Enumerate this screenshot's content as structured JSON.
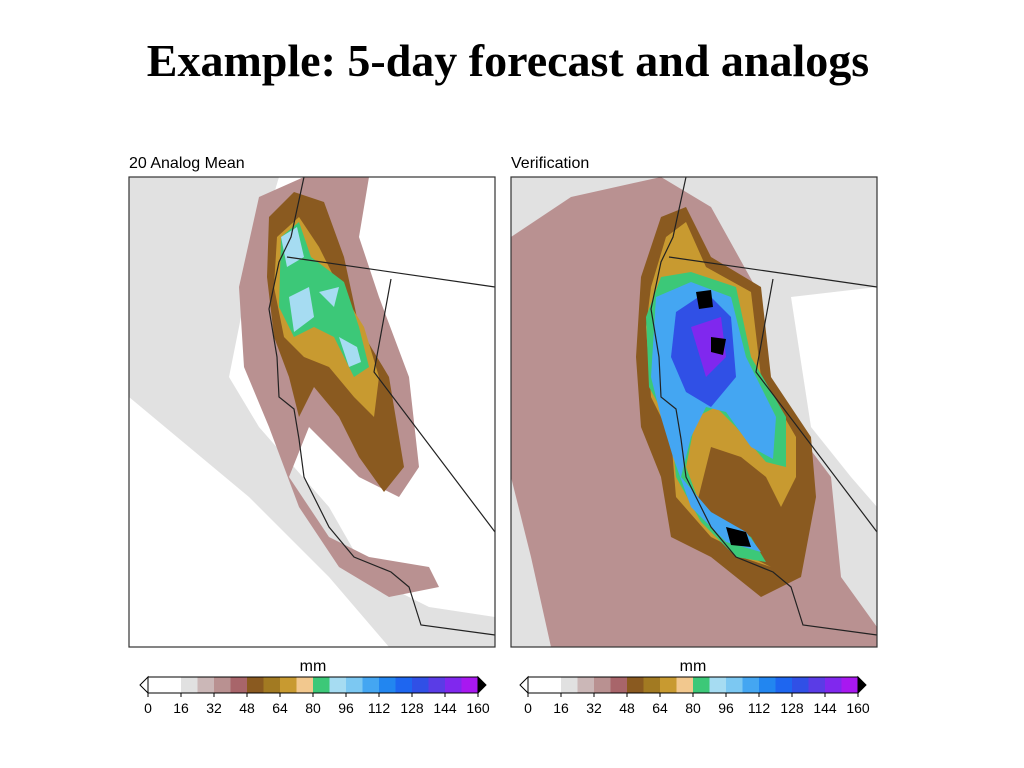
{
  "title": "Example: 5-day forecast and analogs",
  "panels": [
    {
      "title": "20 Analog Mean",
      "colorbar": {
        "unit": "mm",
        "ticks": [
          0,
          16,
          32,
          48,
          64,
          80,
          96,
          112,
          128,
          144,
          160
        ],
        "colors": [
          "#ffffff",
          "#ffffff",
          "#e1e1e1",
          "#cbb7b7",
          "#b99191",
          "#a8656a",
          "#8a5a20",
          "#a27a22",
          "#c89a30",
          "#f2c88e",
          "#3cc878",
          "#a6dcf2",
          "#7cc8f2",
          "#44a6f2",
          "#2286f0",
          "#1e66f0",
          "#3050e6",
          "#5a3ce6",
          "#8028ee",
          "#a818f0"
        ]
      }
    },
    {
      "title": "Verification",
      "colorbar": {
        "unit": "mm",
        "ticks": [
          0,
          16,
          32,
          48,
          64,
          80,
          96,
          112,
          128,
          144,
          160
        ],
        "colors": [
          "#ffffff",
          "#ffffff",
          "#e1e1e1",
          "#cbb7b7",
          "#b99191",
          "#a8656a",
          "#8a5a20",
          "#a27a22",
          "#c89a30",
          "#f2c88e",
          "#3cc878",
          "#a6dcf2",
          "#7cc8f2",
          "#44a6f2",
          "#2286f0",
          "#1e66f0",
          "#3050e6",
          "#5a3ce6",
          "#8028ee",
          "#a818f0"
        ]
      }
    }
  ]
}
